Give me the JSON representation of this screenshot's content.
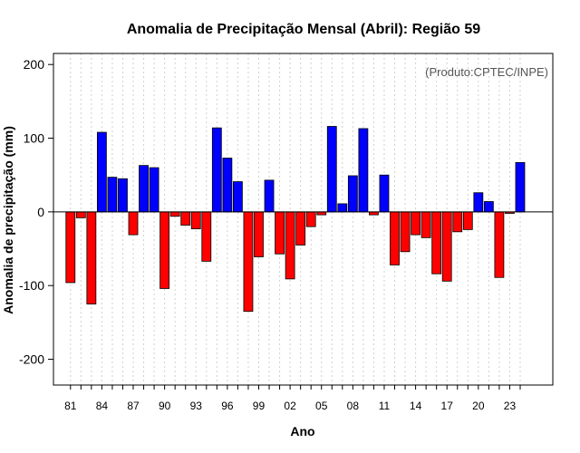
{
  "chart_data": {
    "type": "bar",
    "title": "Anomalia de Precipitação Mensal (Abril): Região 59",
    "xlabel": "Ano",
    "ylabel": "Anomalia de precipitação (mm)",
    "credit": "(Produto:CPTEC/INPE)",
    "ylim": [
      -235,
      215
    ],
    "yticks": [
      -200,
      -100,
      0,
      100,
      200
    ],
    "xtick_labels": [
      "81",
      "84",
      "87",
      "90",
      "93",
      "96",
      "99",
      "02",
      "05",
      "08",
      "11",
      "14",
      "17",
      "20",
      "23"
    ],
    "positive_color": "#0000ff",
    "negative_color": "#ff0000",
    "categories": [
      1981,
      1982,
      1983,
      1984,
      1985,
      1986,
      1987,
      1988,
      1989,
      1990,
      1991,
      1992,
      1993,
      1994,
      1995,
      1996,
      1997,
      1998,
      1999,
      2000,
      2001,
      2002,
      2003,
      2004,
      2005,
      2006,
      2007,
      2008,
      2009,
      2010,
      2011,
      2012,
      2013,
      2014,
      2015,
      2016,
      2017,
      2018,
      2019,
      2020,
      2021,
      2022,
      2023,
      2024
    ],
    "values": [
      -96,
      -8,
      -125,
      108,
      47,
      45,
      -31,
      63,
      60,
      -104,
      -6,
      -18,
      -23,
      -67,
      114,
      73,
      41,
      -135,
      -61,
      43,
      -57,
      -91,
      -45,
      -20,
      -4,
      116,
      11,
      49,
      113,
      -4,
      50,
      -72,
      -54,
      -31,
      -35,
      -84,
      -94,
      -27,
      -24,
      26,
      14,
      -89,
      -2,
      67
    ]
  }
}
